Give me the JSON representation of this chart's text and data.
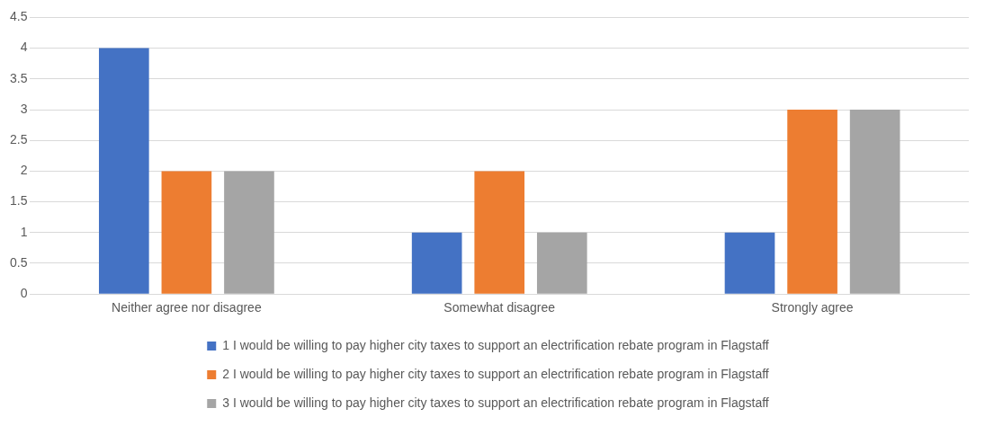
{
  "chart_data": {
    "type": "bar",
    "categories": [
      "Neither agree nor disagree",
      "Somewhat disagree",
      "Strongly agree"
    ],
    "series": [
      {
        "name": "1 I would be willing to pay higher city taxes to support an electrification rebate program in Flagstaff",
        "color": "#4472c4",
        "values": [
          4,
          1,
          1
        ]
      },
      {
        "name": "2 I would be willing to pay higher city taxes to support an electrification rebate program in Flagstaff",
        "color": "#ed7d31",
        "values": [
          2,
          2,
          3
        ]
      },
      {
        "name": "3 I would be willing to pay higher city taxes to support an electrification rebate program in Flagstaff",
        "color": "#a5a5a5",
        "values": [
          2,
          1,
          3
        ]
      }
    ],
    "ylim": [
      0,
      4.5
    ],
    "yticks": [
      0,
      0.5,
      1,
      1.5,
      2,
      2.5,
      3,
      3.5,
      4,
      4.5
    ],
    "grid": "y",
    "legend": "bottom"
  }
}
